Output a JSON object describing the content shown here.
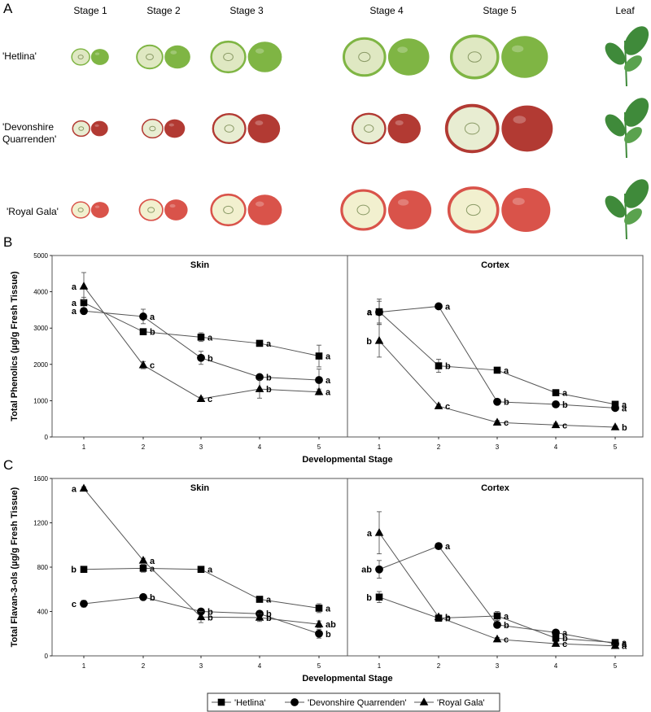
{
  "panel_a": {
    "letter": "A",
    "columns": [
      "Stage 1",
      "Stage 2",
      "Stage 3",
      "Stage 4",
      "Stage 5",
      "Leaf"
    ],
    "rows": [
      {
        "label_lines": [
          "'Hetlina'"
        ],
        "skin": "#7fb544",
        "flesh": "#dfe8c2"
      },
      {
        "label_lines": [
          "'Devonshire",
          "Quarrenden'"
        ],
        "skin": "#b23a33",
        "flesh": "#e8edd2"
      },
      {
        "label_lines": [
          "'Royal Gala'"
        ],
        "skin": "#d9534a",
        "flesh": "#f2f0cf"
      }
    ]
  },
  "colors": {
    "line": "#555555",
    "marker": "#000000",
    "leaf": "#3f8a3a",
    "frame": "#555555"
  },
  "legend": [
    "'Hetlina'",
    "'Devonshire Quarrenden'",
    "'Royal Gala'"
  ],
  "chart_data": [
    {
      "panel": "B",
      "type": "line",
      "ylabel": "Total Phenolics (µg/g Fresh Tissue)",
      "xlabel": "Developmental Stage",
      "ylim": [
        0,
        5000
      ],
      "yticks": [
        0,
        1000,
        2000,
        3000,
        4000,
        5000
      ],
      "x": [
        1,
        2,
        3,
        4,
        5
      ],
      "subplots": [
        {
          "title": "Skin",
          "series": [
            {
              "name": "'Hetlina'",
              "marker": "square",
              "values": [
                3700,
                2900,
                2750,
                2580,
                2230
              ],
              "errors": [
                150,
                80,
                120,
                80,
                300
              ],
              "letters": [
                "a",
                "b",
                "a",
                "a",
                "a"
              ]
            },
            {
              "name": "'Devonshire Quarrenden'",
              "marker": "circle",
              "values": [
                3470,
                3320,
                2180,
                1650,
                1570
              ],
              "errors": [
                80,
                200,
                180,
                50,
                300
              ],
              "letters": [
                "a",
                "a",
                "b",
                "b",
                "a"
              ]
            },
            {
              "name": "'Royal Gala'",
              "marker": "triangle",
              "values": [
                4150,
                1980,
                1050,
                1320,
                1240
              ],
              "errors": [
                380,
                100,
                50,
                250,
                80
              ],
              "letters": [
                "a",
                "c",
                "c",
                "b",
                "a"
              ]
            }
          ]
        },
        {
          "title": "Cortex",
          "series": [
            {
              "name": "'Hetlina'",
              "marker": "square",
              "values": [
                3450,
                1960,
                1840,
                1220,
                900
              ],
              "errors": [
                350,
                180,
                80,
                60,
                50
              ],
              "letters": [
                "a",
                "b",
                "a",
                "a",
                "a"
              ]
            },
            {
              "name": "'Devonshire Quarrenden'",
              "marker": "circle",
              "values": [
                3440,
                3600,
                970,
                900,
                800
              ],
              "errors": [
                300,
                60,
                50,
                80,
                50
              ],
              "letters": [
                "a",
                "a",
                "b",
                "b",
                "a"
              ]
            },
            {
              "name": "'Royal Gala'",
              "marker": "triangle",
              "values": [
                2650,
                850,
                400,
                330,
                270
              ],
              "errors": [
                450,
                60,
                50,
                50,
                30
              ],
              "letters": [
                "b",
                "c",
                "c",
                "c",
                "b"
              ]
            }
          ]
        }
      ]
    },
    {
      "panel": "C",
      "type": "line",
      "ylabel": "Total Flavan-3-ols (µg/g Fresh Tissue)",
      "xlabel": "Developmental Stage",
      "ylim": [
        0,
        1600
      ],
      "yticks": [
        0,
        400,
        800,
        1200,
        1600
      ],
      "x": [
        1,
        2,
        3,
        4,
        5
      ],
      "subplots": [
        {
          "title": "Skin",
          "series": [
            {
              "name": "'Hetlina'",
              "marker": "square",
              "values": [
                780,
                790,
                780,
                510,
                430
              ],
              "errors": [
                15,
                35,
                15,
                20,
                40
              ],
              "letters": [
                "b",
                "a",
                "a",
                "a",
                "a"
              ]
            },
            {
              "name": "'Devonshire Quarrenden'",
              "marker": "circle",
              "values": [
                470,
                530,
                400,
                380,
                200
              ],
              "errors": [
                30,
                15,
                20,
                20,
                40
              ],
              "letters": [
                "c",
                "b",
                "b",
                "b",
                "b"
              ]
            },
            {
              "name": "'Royal Gala'",
              "marker": "triangle",
              "values": [
                1510,
                860,
                350,
                345,
                285
              ],
              "errors": [
                15,
                20,
                50,
                35,
                30
              ],
              "letters": [
                "a",
                "a",
                "b",
                "b",
                "ab"
              ]
            }
          ]
        },
        {
          "title": "Cortex",
          "series": [
            {
              "name": "'Hetlina'",
              "marker": "square",
              "values": [
                530,
                340,
                360,
                160,
                120
              ],
              "errors": [
                50,
                20,
                40,
                20,
                10
              ],
              "letters": [
                "b",
                "b",
                "a",
                "b",
                "a"
              ]
            },
            {
              "name": "'Devonshire Quarrenden'",
              "marker": "circle",
              "values": [
                780,
                990,
                280,
                210,
                110
              ],
              "errors": [
                80,
                20,
                20,
                20,
                10
              ],
              "letters": [
                "ab",
                "a",
                "b",
                "a",
                "a"
              ]
            },
            {
              "name": "'Royal Gala'",
              "marker": "triangle",
              "values": [
                1110,
                350,
                150,
                110,
                90
              ],
              "errors": [
                190,
                20,
                15,
                15,
                10
              ],
              "letters": [
                "a",
                "b",
                "c",
                "c",
                "a"
              ]
            }
          ]
        }
      ]
    }
  ]
}
